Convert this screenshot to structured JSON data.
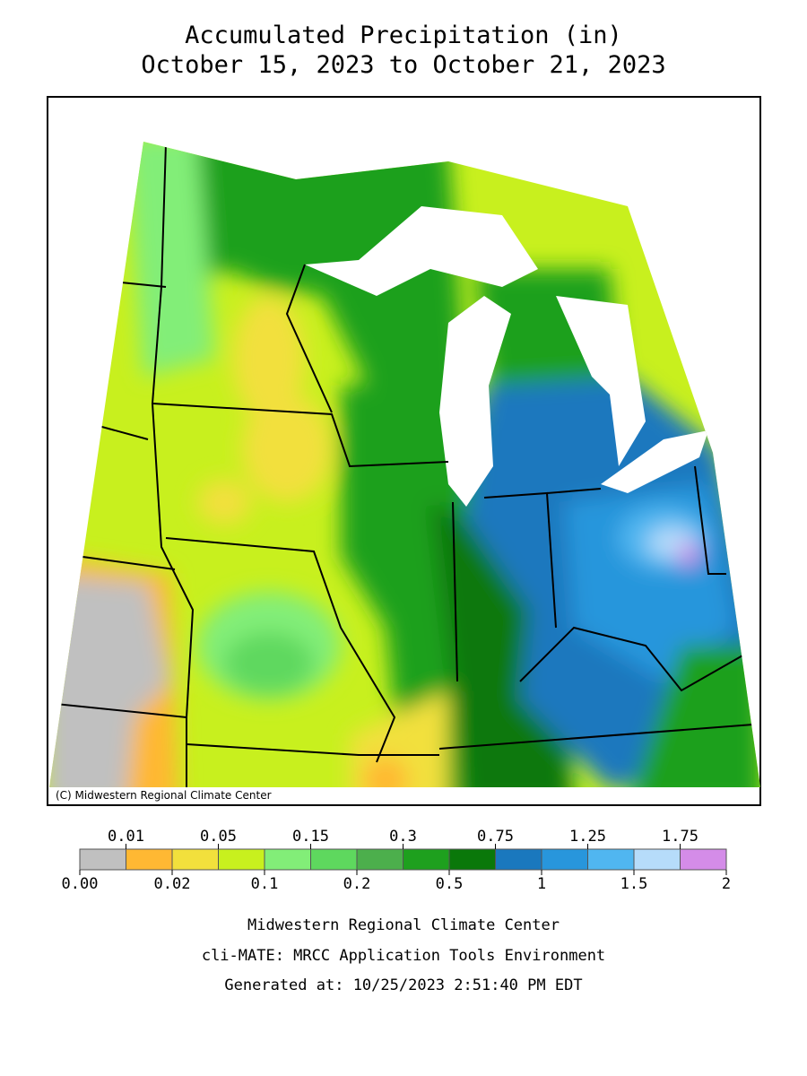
{
  "title": {
    "line1": "Accumulated Precipitation (in)",
    "line2": "October 15, 2023 to October 21, 2023"
  },
  "map": {
    "copyright": "(C) Midwestern Regional Climate Center"
  },
  "legend": {
    "breaks": [
      "0.00",
      "0.01",
      "0.02",
      "0.05",
      "0.1",
      "0.15",
      "0.2",
      "0.3",
      "0.5",
      "0.75",
      "1",
      "1.25",
      "1.5",
      "1.75",
      "2"
    ],
    "colors": [
      "#c0c0c0",
      "#ffb833",
      "#f2e03c",
      "#c8f01e",
      "#82ee78",
      "#5ed85e",
      "#4caf4c",
      "#1ea01e",
      "#0a780a",
      "#1a78be",
      "#2896dc",
      "#50b6f0",
      "#b6dcfa",
      "#d48ce8"
    ]
  },
  "footer": {
    "line1": "Midwestern Regional Climate Center",
    "line2": "cli-MATE: MRCC Application Tools Environment",
    "line3": "Generated at: 10/25/2023 2:51:40 PM EDT"
  }
}
